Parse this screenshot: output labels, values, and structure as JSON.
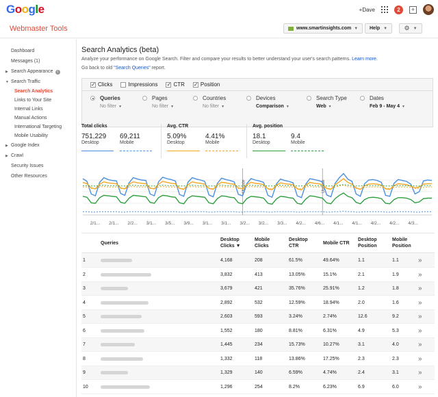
{
  "brand": {
    "logo_letters": [
      {
        "ch": "G",
        "color": "#3369e8"
      },
      {
        "ch": "o",
        "color": "#d50f25"
      },
      {
        "ch": "o",
        "color": "#eeb211"
      },
      {
        "ch": "g",
        "color": "#3369e8"
      },
      {
        "ch": "l",
        "color": "#009925"
      },
      {
        "ch": "e",
        "color": "#d50f25"
      }
    ],
    "accent": "#dd4b39",
    "link_color": "#1155cc"
  },
  "topbar": {
    "user": "+Dave",
    "notifications": "2",
    "icons": [
      "apps-grid-icon",
      "share-icon",
      "avatar"
    ]
  },
  "header": {
    "product": "Webmaster Tools",
    "site": "www.smartinsights.com",
    "help": "Help"
  },
  "sidebar": {
    "dashboard": "Dashboard",
    "messages": "Messages (1)",
    "search_appearance": "Search Appearance",
    "search_traffic": "Search Traffic",
    "search_traffic_items": [
      "Search Analytics",
      "Links to Your Site",
      "Internal Links",
      "Manual Actions",
      "International Targeting",
      "Mobile Usability"
    ],
    "google_index": "Google Index",
    "crawl": "Crawl",
    "security": "Security Issues",
    "other": "Other Resources"
  },
  "main": {
    "title": "Search Analytics (beta)",
    "desc_text": "Analyze your performance on Google Search. Filter and compare your results to better understand your user's search patterns.",
    "learn_more": "Learn more.",
    "old_prefix": "Go back to old",
    "old_link": "\"Search Queries\"",
    "old_suffix": "report."
  },
  "metrics": [
    {
      "label": "Clicks",
      "checked": true
    },
    {
      "label": "Impressions",
      "checked": false
    },
    {
      "label": "CTR",
      "checked": true
    },
    {
      "label": "Position",
      "checked": true
    }
  ],
  "dimensions": [
    {
      "label": "Queries",
      "value": "No filter",
      "selected": true
    },
    {
      "label": "Pages",
      "value": "No filter",
      "selected": false
    },
    {
      "label": "Countries",
      "value": "No filter",
      "selected": false
    },
    {
      "label": "Devices",
      "value": "Comparison",
      "selected": false
    },
    {
      "label": "Search Type",
      "value": "Web",
      "selected": false
    },
    {
      "label": "Dates",
      "value": "Feb 9 - May 4",
      "selected": false
    }
  ],
  "stats": {
    "clicks": {
      "title": "Total clicks",
      "desktop": "751,229",
      "mobile": "69,211"
    },
    "ctr": {
      "title": "Avg. CTR",
      "desktop": "5.09%",
      "mobile": "4.41%"
    },
    "position": {
      "title": "Avg. position",
      "desktop": "18.1",
      "mobile": "9.4"
    },
    "desktop_label": "Desktop",
    "mobile_label": "Mobile",
    "colors": {
      "clicks": "#4a90e2",
      "ctr": "#f5a623",
      "position": "#2e9e3f"
    }
  },
  "chart_data": {
    "type": "line",
    "x_tick_labels": [
      "2/1...",
      "2/1...",
      "2/2...",
      "3/1...",
      "3/5...",
      "3/9...",
      "3/1...",
      "3/1...",
      "3/2...",
      "3/2...",
      "3/3...",
      "4/2...",
      "4/6...",
      "4/1...",
      "4/1...",
      "4/2...",
      "4/2...",
      "4/3..."
    ],
    "annotations": [
      "Update",
      "Update"
    ],
    "annotation_days": [
      38,
      57
    ],
    "series": [
      {
        "name": "Desktop Clicks",
        "color": "#4a90e2",
        "style": "solid",
        "values": [
          0.78,
          0.72,
          0.45,
          0.41,
          0.7,
          0.8,
          0.76,
          0.74,
          0.73,
          0.46,
          0.42,
          0.69,
          0.8,
          0.77,
          0.75,
          0.74,
          0.45,
          0.41,
          0.71,
          0.81,
          0.78,
          0.76,
          0.73,
          0.44,
          0.4,
          0.7,
          0.8,
          0.77,
          0.75,
          0.72,
          0.43,
          0.39,
          0.68,
          0.79,
          0.76,
          0.74,
          0.71,
          0.44,
          0.41,
          0.67,
          0.78,
          0.75,
          0.73,
          0.7,
          0.42,
          0.38,
          0.66,
          0.77,
          0.74,
          0.72,
          0.69,
          0.41,
          0.37,
          0.66,
          0.78,
          0.76,
          0.74,
          0.71,
          0.43,
          0.39,
          0.68,
          0.8,
          0.89,
          0.77,
          0.72,
          0.45,
          0.4,
          0.67,
          0.75,
          0.76,
          0.74,
          0.7,
          0.42,
          0.4,
          0.68,
          0.76,
          0.74,
          0.72,
          0.66,
          0.45,
          0.5,
          0.73,
          0.75,
          0.74
        ]
      },
      {
        "name": "Desktop CTR",
        "color": "#f5a623",
        "style": "solid",
        "values": [
          0.7,
          0.67,
          0.58,
          0.56,
          0.66,
          0.71,
          0.69,
          0.68,
          0.67,
          0.58,
          0.56,
          0.66,
          0.71,
          0.69,
          0.68,
          0.67,
          0.58,
          0.56,
          0.66,
          0.72,
          0.7,
          0.68,
          0.67,
          0.57,
          0.55,
          0.65,
          0.71,
          0.69,
          0.68,
          0.66,
          0.57,
          0.55,
          0.65,
          0.7,
          0.69,
          0.67,
          0.66,
          0.58,
          0.56,
          0.65,
          0.7,
          0.68,
          0.67,
          0.65,
          0.56,
          0.54,
          0.64,
          0.69,
          0.67,
          0.66,
          0.65,
          0.56,
          0.54,
          0.64,
          0.7,
          0.68,
          0.67,
          0.65,
          0.57,
          0.55,
          0.65,
          0.71,
          0.78,
          0.7,
          0.66,
          0.58,
          0.55,
          0.63,
          0.66,
          0.67,
          0.66,
          0.64,
          0.56,
          0.55,
          0.63,
          0.67,
          0.66,
          0.65,
          0.62,
          0.58,
          0.6,
          0.66,
          0.67,
          0.67
        ]
      },
      {
        "name": "Desktop Position",
        "color": "#2e9e3f",
        "style": "solid",
        "values": [
          0.4,
          0.38,
          0.26,
          0.25,
          0.37,
          0.42,
          0.41,
          0.4,
          0.39,
          0.27,
          0.25,
          0.36,
          0.42,
          0.41,
          0.4,
          0.39,
          0.27,
          0.25,
          0.37,
          0.42,
          0.41,
          0.39,
          0.38,
          0.26,
          0.24,
          0.36,
          0.41,
          0.4,
          0.39,
          0.38,
          0.26,
          0.24,
          0.35,
          0.41,
          0.4,
          0.38,
          0.37,
          0.26,
          0.24,
          0.35,
          0.4,
          0.39,
          0.38,
          0.36,
          0.25,
          0.23,
          0.34,
          0.4,
          0.39,
          0.37,
          0.36,
          0.25,
          0.23,
          0.34,
          0.41,
          0.4,
          0.38,
          0.36,
          0.26,
          0.24,
          0.35,
          0.42,
          0.47,
          0.4,
          0.37,
          0.27,
          0.24,
          0.33,
          0.37,
          0.38,
          0.37,
          0.35,
          0.25,
          0.24,
          0.33,
          0.37,
          0.37,
          0.36,
          0.33,
          0.26,
          0.28,
          0.35,
          0.36,
          0.36
        ]
      },
      {
        "name": "Mobile Clicks",
        "color": "#4a90e2",
        "style": "dashed",
        "values": [
          0.07,
          0.07,
          0.06,
          0.06,
          0.07,
          0.07,
          0.07,
          0.07,
          0.07,
          0.06,
          0.06,
          0.07,
          0.07,
          0.07,
          0.07,
          0.07,
          0.06,
          0.06,
          0.07,
          0.07,
          0.07,
          0.07,
          0.07,
          0.06,
          0.06,
          0.07,
          0.07,
          0.07,
          0.07,
          0.07,
          0.06,
          0.06,
          0.07,
          0.07,
          0.07,
          0.07,
          0.07,
          0.06,
          0.06,
          0.07,
          0.07,
          0.07,
          0.07,
          0.07,
          0.06,
          0.06,
          0.07,
          0.07,
          0.07,
          0.07,
          0.07,
          0.06,
          0.06,
          0.07,
          0.07,
          0.07,
          0.07,
          0.07,
          0.06,
          0.06,
          0.07,
          0.07,
          0.08,
          0.07,
          0.07,
          0.06,
          0.06,
          0.07,
          0.07,
          0.07,
          0.07,
          0.07,
          0.06,
          0.06,
          0.07,
          0.07,
          0.07,
          0.07,
          0.07,
          0.06,
          0.06,
          0.07,
          0.07,
          0.07
        ]
      },
      {
        "name": "Mobile CTR",
        "color": "#f5a623",
        "style": "dashed",
        "values": [
          0.6,
          0.6,
          0.57,
          0.56,
          0.6,
          0.61,
          0.6,
          0.6,
          0.6,
          0.57,
          0.56,
          0.6,
          0.61,
          0.6,
          0.6,
          0.6,
          0.57,
          0.56,
          0.6,
          0.61,
          0.6,
          0.6,
          0.6,
          0.57,
          0.56,
          0.6,
          0.61,
          0.6,
          0.6,
          0.6,
          0.57,
          0.56,
          0.6,
          0.61,
          0.6,
          0.6,
          0.6,
          0.57,
          0.56,
          0.6,
          0.61,
          0.6,
          0.6,
          0.6,
          0.57,
          0.56,
          0.6,
          0.61,
          0.6,
          0.6,
          0.6,
          0.57,
          0.56,
          0.6,
          0.61,
          0.6,
          0.6,
          0.6,
          0.57,
          0.56,
          0.6,
          0.62,
          0.64,
          0.61,
          0.6,
          0.57,
          0.56,
          0.59,
          0.6,
          0.6,
          0.6,
          0.59,
          0.57,
          0.56,
          0.59,
          0.6,
          0.6,
          0.6,
          0.59,
          0.57,
          0.57,
          0.59,
          0.6,
          0.6
        ]
      },
      {
        "name": "Mobile Position",
        "color": "#2e9e3f",
        "style": "dashed",
        "values": [
          0.63,
          0.63,
          0.62,
          0.62,
          0.63,
          0.64,
          0.63,
          0.63,
          0.63,
          0.62,
          0.62,
          0.63,
          0.64,
          0.63,
          0.63,
          0.63,
          0.62,
          0.62,
          0.63,
          0.64,
          0.63,
          0.63,
          0.63,
          0.62,
          0.62,
          0.63,
          0.64,
          0.63,
          0.63,
          0.63,
          0.62,
          0.62,
          0.63,
          0.64,
          0.63,
          0.63,
          0.63,
          0.62,
          0.62,
          0.63,
          0.64,
          0.63,
          0.63,
          0.63,
          0.62,
          0.62,
          0.63,
          0.64,
          0.63,
          0.63,
          0.63,
          0.62,
          0.62,
          0.63,
          0.64,
          0.63,
          0.63,
          0.63,
          0.62,
          0.62,
          0.63,
          0.64,
          0.65,
          0.64,
          0.63,
          0.62,
          0.62,
          0.63,
          0.63,
          0.63,
          0.63,
          0.63,
          0.62,
          0.62,
          0.63,
          0.63,
          0.63,
          0.63,
          0.63,
          0.62,
          0.62,
          0.63,
          0.63,
          0.63
        ]
      }
    ]
  },
  "table": {
    "headers": {
      "queries": "Queries",
      "d_clicks": [
        "Desktop",
        "Clicks ▼"
      ],
      "m_clicks": [
        "Mobile",
        "Clicks"
      ],
      "d_ctr": [
        "Desktop",
        "CTR"
      ],
      "m_ctr": "Mobile CTR",
      "d_pos": [
        "Desktop",
        "Position"
      ],
      "m_pos": [
        "Mobile",
        "Position"
      ]
    },
    "rows": [
      {
        "n": "1",
        "d_clicks": "4,168",
        "m_clicks": "208",
        "d_ctr": "61.5%",
        "m_ctr": "49.64%",
        "d_pos": "1.1",
        "m_pos": "1.1"
      },
      {
        "n": "2",
        "d_clicks": "3,832",
        "m_clicks": "413",
        "d_ctr": "13.05%",
        "m_ctr": "15.1%",
        "d_pos": "2.1",
        "m_pos": "1.9"
      },
      {
        "n": "3",
        "d_clicks": "3,679",
        "m_clicks": "421",
        "d_ctr": "35.76%",
        "m_ctr": "25.91%",
        "d_pos": "1.2",
        "m_pos": "1.8"
      },
      {
        "n": "4",
        "d_clicks": "2,892",
        "m_clicks": "532",
        "d_ctr": "12.59%",
        "m_ctr": "18.94%",
        "d_pos": "2.0",
        "m_pos": "1.6"
      },
      {
        "n": "5",
        "d_clicks": "2,603",
        "m_clicks": "593",
        "d_ctr": "3.24%",
        "m_ctr": "2.74%",
        "d_pos": "12.6",
        "m_pos": "9.2"
      },
      {
        "n": "6",
        "d_clicks": "1,552",
        "m_clicks": "180",
        "d_ctr": "8.81%",
        "m_ctr": "6.31%",
        "d_pos": "4.9",
        "m_pos": "5.3"
      },
      {
        "n": "7",
        "d_clicks": "1,445",
        "m_clicks": "234",
        "d_ctr": "15.73%",
        "m_ctr": "10.27%",
        "d_pos": "3.1",
        "m_pos": "4.0"
      },
      {
        "n": "8",
        "d_clicks": "1,332",
        "m_clicks": "118",
        "d_ctr": "13.86%",
        "m_ctr": "17.25%",
        "d_pos": "2.3",
        "m_pos": "2.3"
      },
      {
        "n": "9",
        "d_clicks": "1,329",
        "m_clicks": "140",
        "d_ctr": "6.59%",
        "m_ctr": "4.74%",
        "d_pos": "2.4",
        "m_pos": "3.1"
      },
      {
        "n": "10",
        "d_clicks": "1,296",
        "m_clicks": "254",
        "d_ctr": "8.2%",
        "m_ctr": "6.23%",
        "d_pos": "6.9",
        "m_pos": "6.0"
      }
    ]
  }
}
